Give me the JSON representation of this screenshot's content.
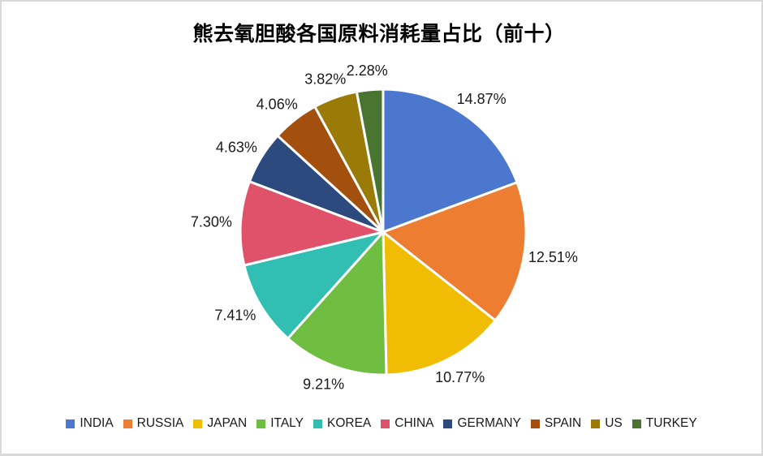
{
  "page": {
    "background_color": "#ffffff",
    "border_color": "#d9d9d9"
  },
  "chart_data": {
    "type": "pie",
    "title": "熊去氧胆酸各国原料消耗量占比（前十）",
    "categories": [
      "INDIA",
      "RUSSIA",
      "JAPAN",
      "ITALY",
      "KOREA",
      "CHINA",
      "GERMANY",
      "SPAIN",
      "US",
      "TURKEY"
    ],
    "values": [
      14.87,
      12.51,
      10.77,
      9.21,
      7.41,
      7.3,
      4.63,
      4.06,
      3.82,
      2.28
    ],
    "labels": [
      "14.87%",
      "12.51%",
      "10.77%",
      "9.21%",
      "7.41%",
      "7.30%",
      "4.63%",
      "4.06%",
      "3.82%",
      "2.28%"
    ],
    "colors": [
      "#4B78CE",
      "#ED7D31",
      "#F1BD02",
      "#70BE41",
      "#30BFB2",
      "#E0526A",
      "#2C4A7D",
      "#A3500E",
      "#9A7B08",
      "#4A7530"
    ],
    "unit": "%",
    "start_angle": "12-oclock-clockwise",
    "label_position": "outside",
    "slice_border_color": "#ffffff",
    "legend_position": "bottom",
    "values_normalized_to_sum": true
  }
}
